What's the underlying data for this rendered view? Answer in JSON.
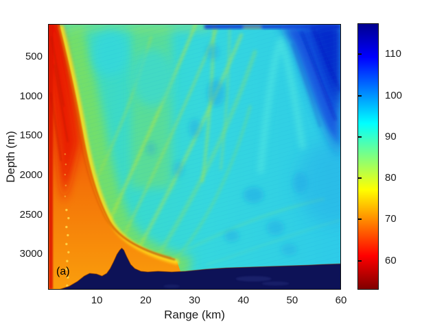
{
  "figure": {
    "panel_label": "(a)"
  },
  "chart_data": {
    "type": "heatmap",
    "title": "",
    "xlabel": "Range (km)",
    "ylabel": "Depth (m)",
    "x_axis": {
      "min": 0,
      "max": 60,
      "ticks": [
        10,
        20,
        30,
        40,
        50,
        60
      ]
    },
    "y_axis": {
      "min": 80,
      "max": 3450,
      "ticks": [
        500,
        1000,
        1500,
        2000,
        2500,
        3000
      ],
      "direction": "increasing-downward"
    },
    "grid": false,
    "legend": "none",
    "colorbar": {
      "orientation": "vertical-right",
      "min": 53,
      "max": 117.5,
      "ticks": [
        60,
        70,
        80,
        90,
        100,
        110
      ],
      "colormap": "jet reversed (low=dark red, high=dark navy)",
      "gradient_stops": [
        {
          "pos_pct": 0,
          "color": "#00008f"
        },
        {
          "pos_pct": 12.5,
          "color": "#0000ff"
        },
        {
          "pos_pct": 37.5,
          "color": "#00ffff"
        },
        {
          "pos_pct": 62.5,
          "color": "#ffff00"
        },
        {
          "pos_pct": 87.5,
          "color": "#ff0000"
        },
        {
          "pos_pct": 100,
          "color": "#800000"
        }
      ]
    },
    "palette": {
      "red": "#e81500",
      "dark_red": "#c01000",
      "orange": "#f79a0a",
      "yellow_edge": "#ffdf1f",
      "caustic_dark": "#d25a00",
      "green": "#86e04a",
      "streak_yellow": "#c8e92e",
      "base_cyan": "#35d8da",
      "blue": "#1e7cf0",
      "deep_blue": "#0a2ad2",
      "navy_band": "#0c2fd0",
      "seafloor_navy": "#0d1257",
      "axis_text": "#1a1a1a"
    },
    "features": [
      {
        "name": "near-source high-intensity zone",
        "range_km": [
          0,
          2
        ],
        "depth_m": [
          80,
          3400
        ],
        "approx_value": [
          55,
          65
        ],
        "color": "red"
      },
      {
        "name": "direct-arrival wedge interior",
        "range_km": [
          0,
          24
        ],
        "depth_m": [
          400,
          3400
        ],
        "approx_value": [
          65,
          75
        ],
        "color": "orange"
      },
      {
        "name": "caustic boundary (bright yellow edge)",
        "path_km_m": [
          [
            2,
            80
          ],
          [
            5,
            1000
          ],
          [
            8,
            1900
          ],
          [
            12,
            2700
          ],
          [
            17,
            3100
          ],
          [
            25,
            3300
          ]
        ],
        "approx_value": 78
      },
      {
        "name": "ambient mid-field",
        "range_km": [
          20,
          60
        ],
        "depth_m": [
          80,
          3200
        ],
        "approx_value": [
          85,
          95
        ],
        "color": "cyan"
      },
      {
        "name": "convergence-path streaks",
        "approx_value": [
          78,
          85
        ],
        "color": "yellow-green"
      },
      {
        "name": "surface shadow band",
        "range_km": [
          22,
          60
        ],
        "depth_m": [
          80,
          140
        ],
        "approx_value": [
          100,
          112
        ],
        "color": "dark blue"
      },
      {
        "name": "deep shadow zone (top-right)",
        "range_km": [
          46,
          60
        ],
        "depth_m": [
          80,
          1700
        ],
        "approx_value": [
          100,
          112
        ],
        "color": "blue"
      },
      {
        "name": "seafloor mask with seamount (peak ~2930 m at ~15.2 km)",
        "color": "dark navy"
      }
    ],
    "bathymetry_profile_km_m": [
      [
        2.7,
        3450
      ],
      [
        4.4,
        3415
      ],
      [
        6.1,
        3354
      ],
      [
        7.5,
        3285
      ],
      [
        8.6,
        3250
      ],
      [
        10.0,
        3259
      ],
      [
        11.1,
        3285
      ],
      [
        12.1,
        3250
      ],
      [
        12.8,
        3189
      ],
      [
        13.5,
        3103
      ],
      [
        14.2,
        3007
      ],
      [
        14.8,
        2955
      ],
      [
        15.2,
        2933
      ],
      [
        15.6,
        2955
      ],
      [
        16.2,
        3033
      ],
      [
        17.0,
        3137
      ],
      [
        17.9,
        3189
      ],
      [
        19.1,
        3224
      ],
      [
        20.5,
        3233
      ],
      [
        22.7,
        3224
      ],
      [
        25.5,
        3233
      ],
      [
        28.3,
        3224
      ],
      [
        32.5,
        3198
      ],
      [
        36.7,
        3181
      ],
      [
        40.9,
        3172
      ],
      [
        45.1,
        3163
      ],
      [
        49.3,
        3155
      ],
      [
        53.6,
        3146
      ],
      [
        56.4,
        3137
      ],
      [
        60.0,
        3129
      ]
    ]
  }
}
